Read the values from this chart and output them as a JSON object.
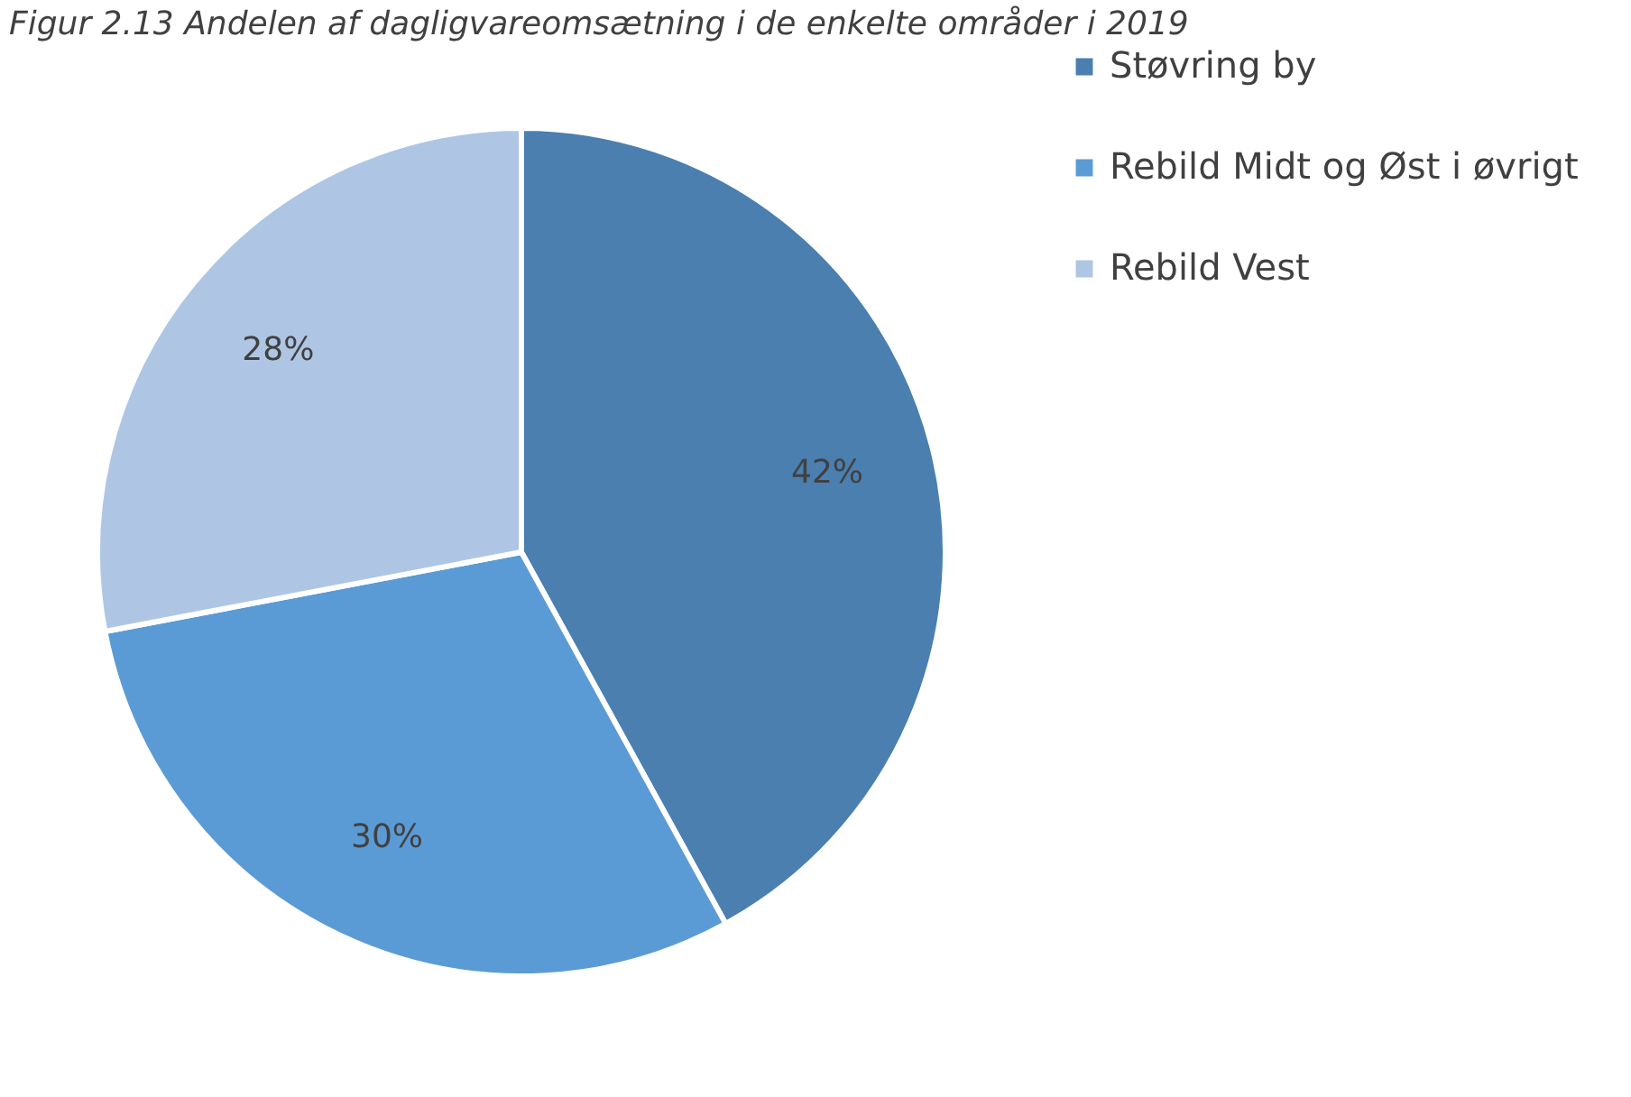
{
  "chart_data": {
    "type": "pie",
    "title": "Figur 2.13 Andelen af dagligvareomsætning i de enkelte områder i 2019",
    "categories": [
      "Støvring by",
      "Rebild Midt og Øst i øvrigt",
      "Rebild Vest"
    ],
    "values": [
      42,
      30,
      28
    ],
    "value_labels": [
      "42%",
      "30%",
      "28%"
    ],
    "colors": [
      "#4a7fb0",
      "#5b9bd5",
      "#aec6e4"
    ],
    "legend": "right"
  }
}
